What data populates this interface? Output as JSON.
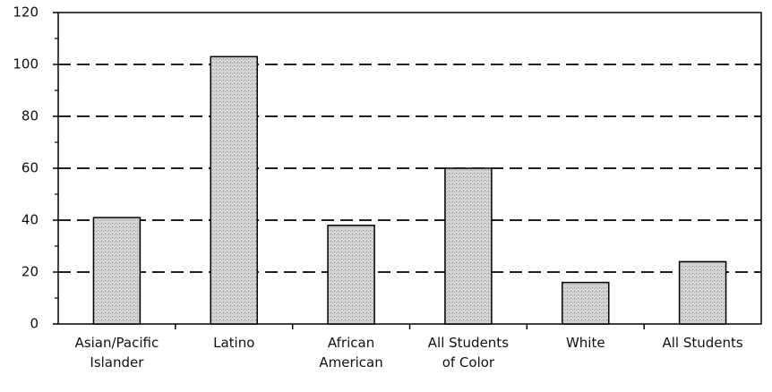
{
  "chart_data": {
    "type": "bar",
    "categories": [
      "Asian/Pacific\nIslander",
      "Latino",
      "African\nAmerican",
      "All Students\nof Color",
      "White",
      "All Students"
    ],
    "values": [
      41,
      103,
      38,
      60,
      16,
      24
    ],
    "color": "#c9c9c9",
    "ylim": [
      0,
      120
    ],
    "yticks": [
      0,
      20,
      40,
      60,
      80,
      100,
      120
    ],
    "grid": true
  }
}
